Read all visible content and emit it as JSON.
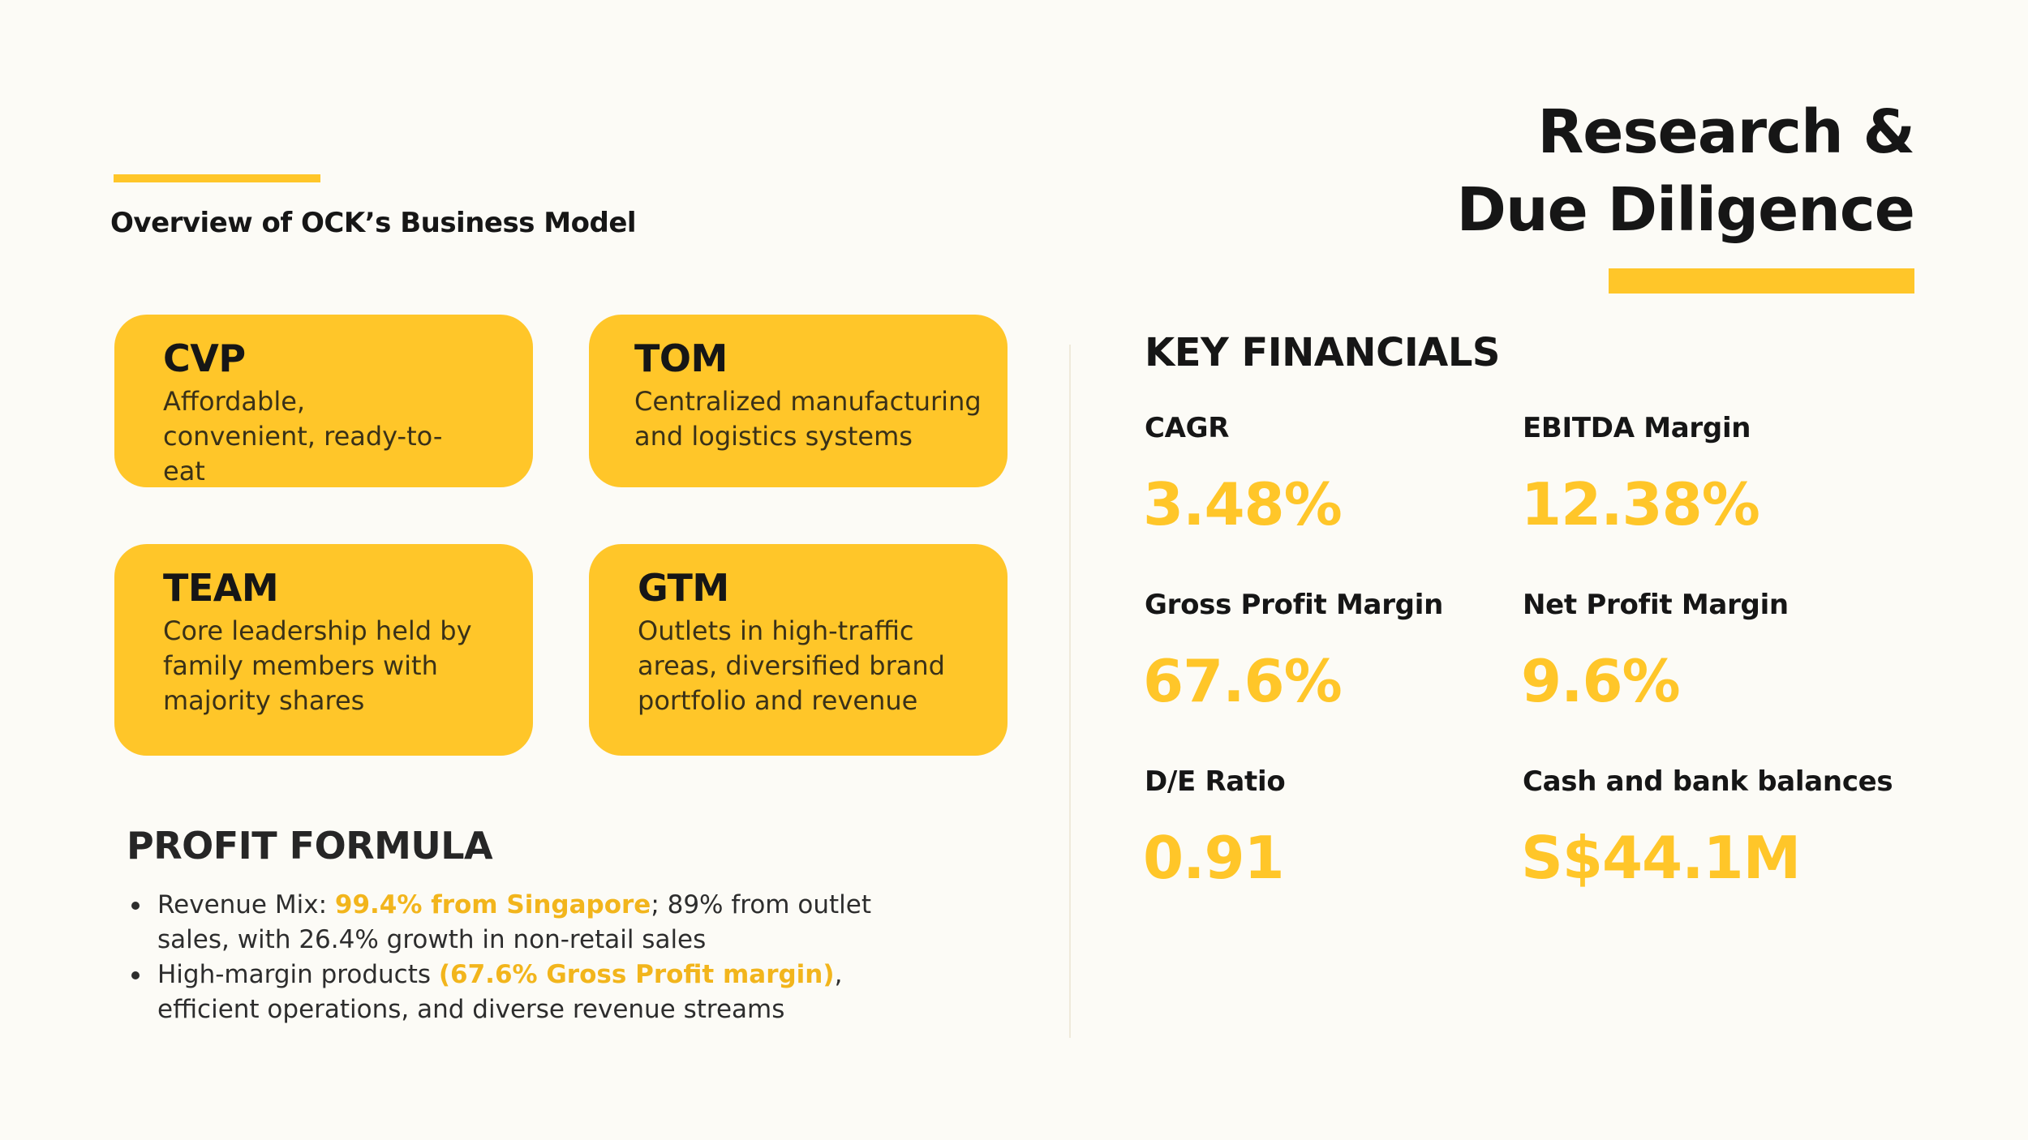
{
  "title": {
    "line1": "Research &",
    "line2": "Due Diligence"
  },
  "subtitle": "Overview of OCK’s Business Model",
  "cards": [
    {
      "title": "CVP",
      "desc": "Affordable, convenient, ready-to-eat"
    },
    {
      "title": "TOM",
      "desc": "Centralized manufacturing and logistics systems"
    },
    {
      "title": "TEAM",
      "desc": "Core leadership held by family members with majority shares"
    },
    {
      "title": "GTM",
      "desc": "Outlets in high-traffic areas, diversified brand portfolio and revenue"
    }
  ],
  "profit_formula": {
    "heading": "PROFIT FORMULA",
    "items": [
      {
        "prefix": "Revenue Mix: ",
        "highlight": "99.4% from Singapore",
        "suffix": "; 89% from outlet sales, with 26.4% growth in non-retail sales"
      },
      {
        "prefix": "High-margin products ",
        "highlight": "(67.6% Gross Profit margin)",
        "suffix": ", efficient operations, and diverse revenue streams"
      }
    ]
  },
  "key_financials": {
    "heading": "KEY FINANCIALS",
    "metrics": [
      {
        "label": "CAGR",
        "value": "3.48%"
      },
      {
        "label": "EBITDA Margin",
        "value": "12.38%"
      },
      {
        "label": "Gross Profit Margin",
        "value": "67.6%"
      },
      {
        "label": "Net Profit Margin",
        "value": "9.6%"
      },
      {
        "label": "D/E Ratio",
        "value": "0.91"
      },
      {
        "label": "Cash and bank balances",
        "value": "S$44.1M"
      }
    ]
  },
  "colors": {
    "accent": "#ffc629",
    "background": "#fcfbf6",
    "text": "#161616"
  }
}
